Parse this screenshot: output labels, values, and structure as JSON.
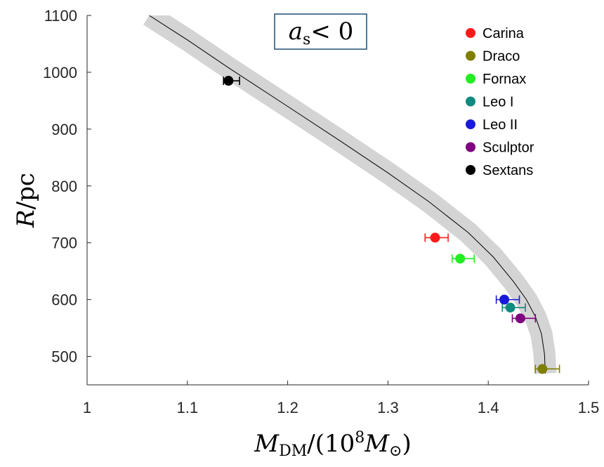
{
  "chart_data": {
    "type": "scatter",
    "annotation": "a_s < 0",
    "annotation_parts": {
      "symbol": "a",
      "subscript": "s",
      "relation": "< 0"
    },
    "xlabel_parts": {
      "var": "M",
      "sub": "DM",
      "mid": "/(10",
      "exp": "8",
      "var2": "M",
      "sub2": "⊙",
      "end": ")"
    },
    "ylabel_parts": {
      "var": "R",
      "unit": "/pc"
    },
    "xlim": [
      1.0,
      1.5
    ],
    "ylim": [
      450,
      1100
    ],
    "xticks": [
      1.0,
      1.1,
      1.2,
      1.3,
      1.4,
      1.5
    ],
    "xtick_labels": [
      "1",
      "1.1",
      "1.2",
      "1.3",
      "1.4",
      "1.5"
    ],
    "yticks": [
      500,
      600,
      700,
      800,
      900,
      1000,
      1100
    ],
    "ytick_labels": [
      "500",
      "600",
      "700",
      "800",
      "900",
      "1000",
      "1100"
    ],
    "legend_position": "top-right",
    "curve": {
      "description": "theoretical M-R relation with shaded uncertainty band",
      "points": [
        {
          "x": 1.062,
          "y": 1100
        },
        {
          "x": 1.1,
          "y": 1057
        },
        {
          "x": 1.141,
          "y": 1008
        },
        {
          "x": 1.2,
          "y": 940
        },
        {
          "x": 1.25,
          "y": 882
        },
        {
          "x": 1.3,
          "y": 823
        },
        {
          "x": 1.341,
          "y": 772
        },
        {
          "x": 1.38,
          "y": 718
        },
        {
          "x": 1.405,
          "y": 675
        },
        {
          "x": 1.425,
          "y": 632
        },
        {
          "x": 1.438,
          "y": 600
        },
        {
          "x": 1.447,
          "y": 570
        },
        {
          "x": 1.453,
          "y": 540
        },
        {
          "x": 1.456,
          "y": 505
        },
        {
          "x": 1.457,
          "y": 470
        }
      ],
      "band_halfwidth": 0.011
    },
    "series": [
      {
        "name": "Carina",
        "color": "#ff1a1a",
        "x": 1.347,
        "xerr_low": 0.01,
        "xerr_high": 0.013,
        "y": 709
      },
      {
        "name": "Draco",
        "color": "#7f7f00",
        "x": 1.454,
        "xerr_low": 0.007,
        "xerr_high": 0.017,
        "y": 478
      },
      {
        "name": "Fornax",
        "color": "#22ee22",
        "x": 1.372,
        "xerr_low": 0.008,
        "xerr_high": 0.014,
        "y": 672
      },
      {
        "name": "Leo I",
        "color": "#0f8a7e",
        "x": 1.422,
        "xerr_low": 0.008,
        "xerr_high": 0.015,
        "y": 586
      },
      {
        "name": "Leo II",
        "color": "#1a1adb",
        "x": 1.416,
        "xerr_low": 0.008,
        "xerr_high": 0.015,
        "y": 600
      },
      {
        "name": "Sculptor",
        "color": "#800080",
        "x": 1.432,
        "xerr_low": 0.008,
        "xerr_high": 0.015,
        "y": 567
      },
      {
        "name": "Sextans",
        "color": "#000000",
        "x": 1.141,
        "xerr_low": 0.005,
        "xerr_high": 0.011,
        "y": 985
      }
    ]
  }
}
